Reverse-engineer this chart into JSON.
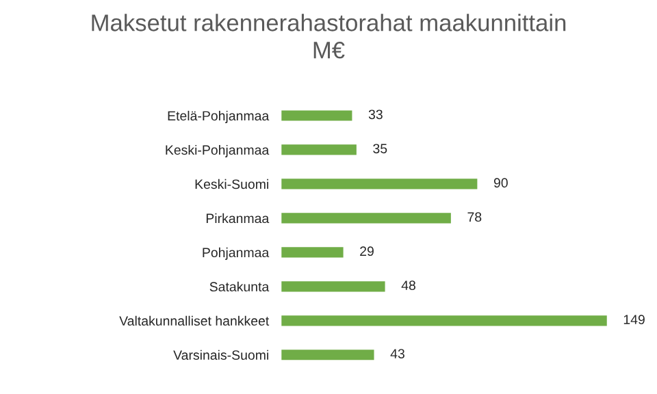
{
  "chart_data": {
    "type": "bar",
    "orientation": "horizontal",
    "title": "Maksetut rakennerahastorahat maakunnittain\nM€",
    "categories": [
      "Etelä-Pohjanmaa",
      "Keski-Pohjanmaa",
      "Keski-Suomi",
      "Pirkanmaa",
      "Pohjanmaa",
      "Satakunta",
      "Valtakunnalliset hankkeet",
      "Varsinais-Suomi"
    ],
    "values": [
      33,
      35,
      90,
      78,
      29,
      48,
      149,
      43
    ],
    "color": "#70ad47",
    "data_labels": true,
    "grid": false,
    "legend": false
  }
}
